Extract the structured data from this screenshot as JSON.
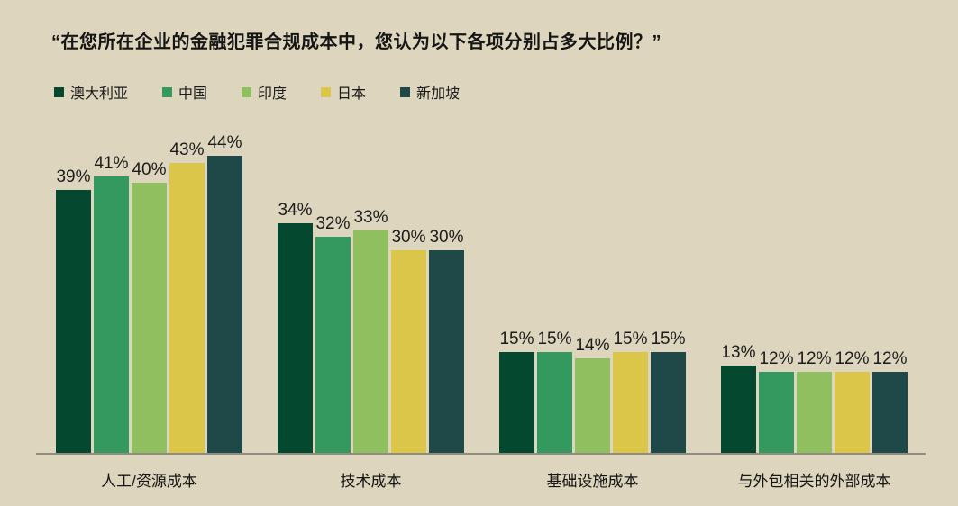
{
  "title": "“在您所在企业的金融犯罪合规成本中，您认为以下各项分别占多大比例？”",
  "colors": {
    "background": "#ddd5bd",
    "axis": "#8f8d7f",
    "text": "#1a1a1a"
  },
  "chart_data": {
    "type": "bar",
    "title": "在您所在企业的金融犯罪合规成本中，您认为以下各项分别占多大比例？",
    "categories": [
      "人工/资源成本",
      "技术成本",
      "基础设施成本",
      "与外包相关的外部成本"
    ],
    "series": [
      {
        "name": "澳大利亚",
        "color": "#04482f",
        "values": [
          39,
          34,
          15,
          13
        ]
      },
      {
        "name": "中国",
        "color": "#33995e",
        "values": [
          41,
          32,
          15,
          12
        ]
      },
      {
        "name": "印度",
        "color": "#8fbf5e",
        "values": [
          40,
          33,
          14,
          12
        ]
      },
      {
        "name": "日本",
        "color": "#dcc64a",
        "values": [
          43,
          30,
          15,
          12
        ]
      },
      {
        "name": "新加坡",
        "color": "#1f4848",
        "values": [
          44,
          30,
          15,
          12
        ]
      }
    ],
    "value_suffix": "%",
    "ylim": [
      0,
      48
    ],
    "grid": false,
    "data_labels": true,
    "legend_position": "top-left",
    "xlabel": "",
    "ylabel": ""
  }
}
